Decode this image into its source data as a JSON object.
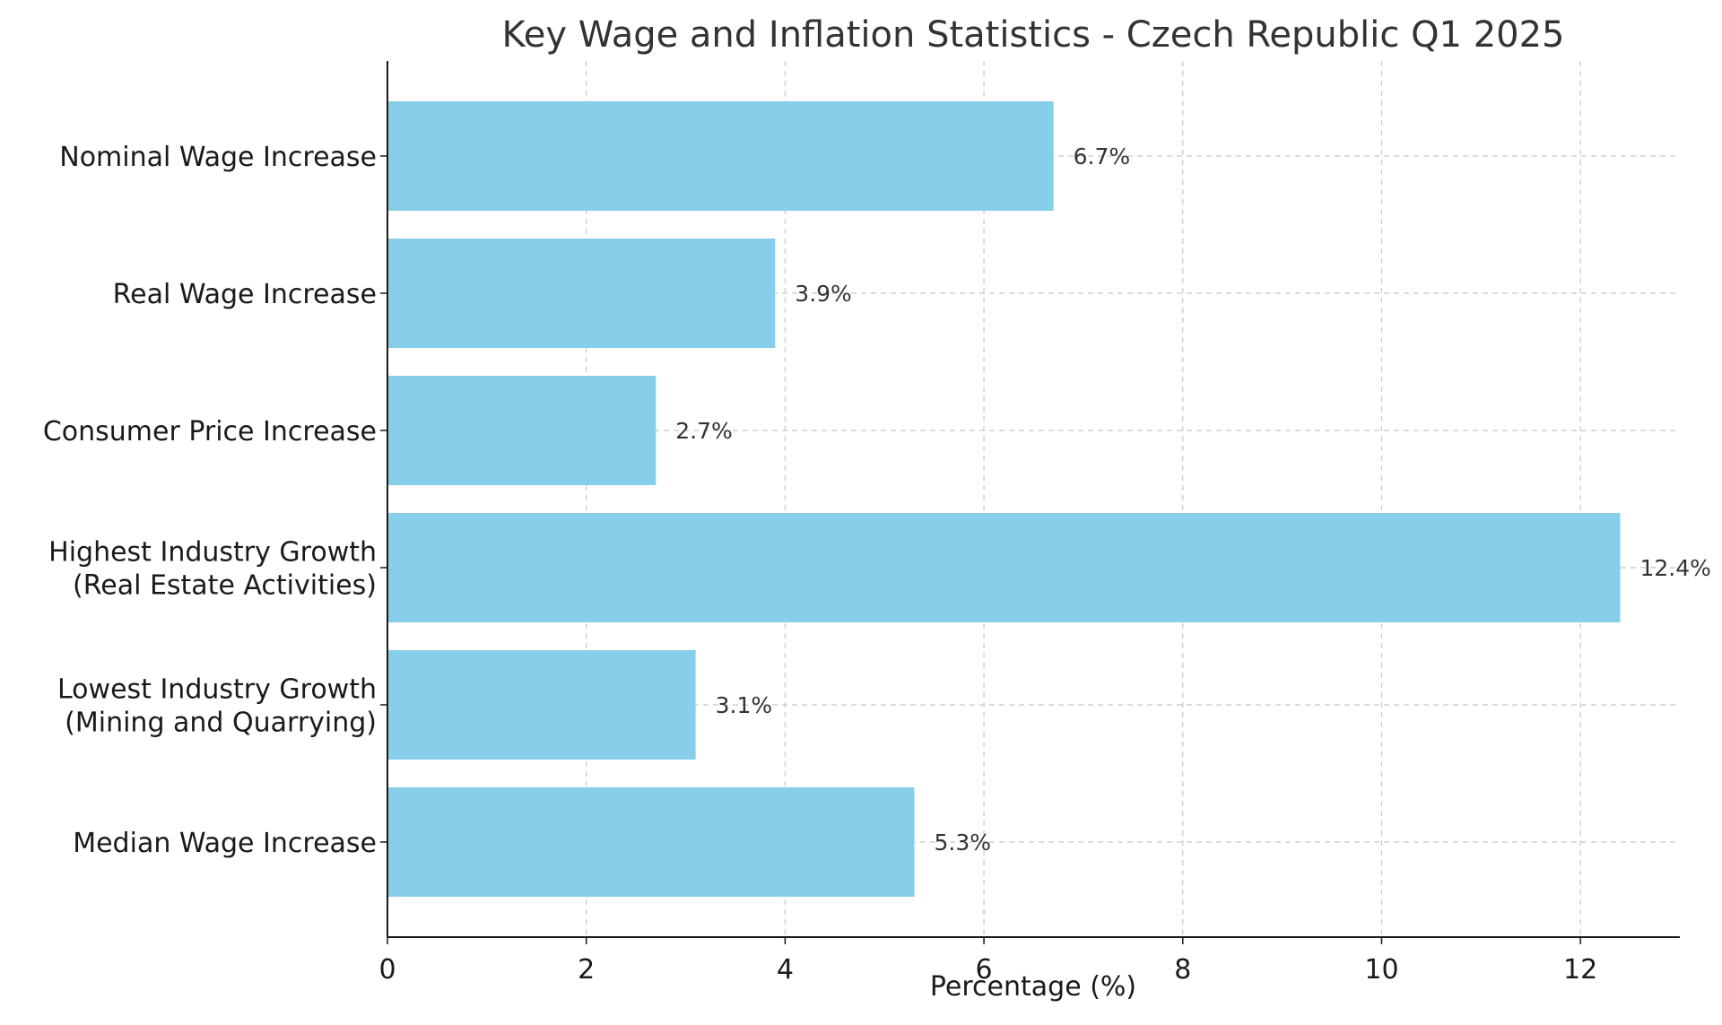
{
  "chart_data": {
    "type": "bar",
    "orientation": "horizontal",
    "title": "Key Wage and Inflation Statistics - Czech Republic Q1 2025",
    "xlabel": "Percentage (%)",
    "ylabel": "",
    "categories": [
      [
        "Nominal Wage Increase"
      ],
      [
        "Real Wage Increase"
      ],
      [
        "Consumer Price Increase"
      ],
      [
        "Highest Industry Growth",
        "(Real Estate Activities)"
      ],
      [
        "Lowest Industry Growth",
        "(Mining and Quarrying)"
      ],
      [
        "Median Wage Increase"
      ]
    ],
    "values": [
      6.7,
      3.9,
      2.7,
      12.4,
      3.1,
      5.3
    ],
    "value_labels": [
      "6.7%",
      "3.9%",
      "2.7%",
      "12.4%",
      "3.1%",
      "5.3%"
    ],
    "xticks": [
      0,
      2,
      4,
      6,
      8,
      10,
      12
    ],
    "xtick_labels": [
      "0",
      "2",
      "4",
      "6",
      "8",
      "10",
      "12"
    ],
    "xlim": [
      0,
      13
    ],
    "grid": true,
    "bar_color": "#87ceeb"
  }
}
